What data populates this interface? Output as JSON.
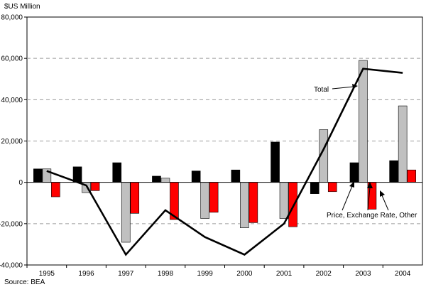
{
  "chart_data": {
    "type": "bar",
    "ylabel": "$US Million",
    "source": "Source:  BEA",
    "categories": [
      "1995",
      "1996",
      "1997",
      "1998",
      "1999",
      "2000",
      "2001",
      "2002",
      "2003",
      "2004"
    ],
    "series": [
      {
        "name": "",
        "color": "#000000",
        "values": [
          6500,
          7500,
          9500,
          3000,
          5500,
          6000,
          19500,
          -5500,
          9500,
          10500
        ]
      },
      {
        "name": "",
        "color": "#c0c0c0",
        "values": [
          6500,
          -5000,
          -29000,
          2000,
          -17500,
          -22000,
          -17500,
          25500,
          59000,
          37000
        ]
      },
      {
        "name": "Price, Exchange Rate, Other",
        "color": "#ff0000",
        "values": [
          -7000,
          -4000,
          -15000,
          -18000,
          -14500,
          -19500,
          -21500,
          -4500,
          -13000,
          6000
        ]
      }
    ],
    "line": {
      "name": "Total",
      "color": "#000000",
      "values": [
        5500,
        -1500,
        -35000,
        -13500,
        -26500,
        -35000,
        -20000,
        16000,
        55000,
        53000
      ]
    },
    "yticks": [
      -40000,
      -20000,
      0,
      20000,
      40000,
      60000,
      80000
    ],
    "ytick_labels": [
      "-40,000",
      "-20,000",
      "0",
      "20,000",
      "40,000",
      "60,000",
      "80,000"
    ],
    "ylim": [
      -40000,
      80000
    ],
    "grid": "dashed horizontal",
    "annotations": {
      "total": "Total",
      "red": "Price, Exchange Rate, Other"
    }
  }
}
